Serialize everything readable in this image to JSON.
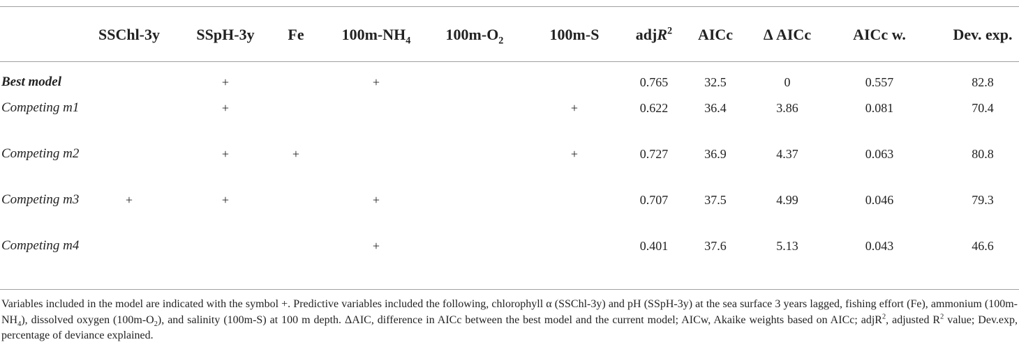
{
  "table": {
    "header": [
      [
        {
          "text": "SSChl-3y"
        }
      ],
      [
        {
          "text": "SSpH-3y"
        }
      ],
      [
        {
          "text": "Fe"
        }
      ],
      [
        {
          "text": "100m-NH"
        },
        {
          "text": "4",
          "style": "sub"
        }
      ],
      [
        {
          "text": "100m-O"
        },
        {
          "text": "2",
          "style": "sub"
        }
      ],
      [
        {
          "text": "100m-S"
        }
      ],
      [
        {
          "text": "adj"
        },
        {
          "text": "R",
          "style": "i"
        },
        {
          "text": "2",
          "style": "sup"
        }
      ],
      [
        {
          "text": "AICc"
        }
      ],
      [
        {
          "text": "Δ AICc"
        }
      ],
      [
        {
          "text": "AICc w."
        }
      ],
      [
        {
          "text": "Dev. exp."
        }
      ]
    ],
    "rows": [
      {
        "label": "Best model",
        "label_style": "bi",
        "cells": [
          null,
          "+",
          null,
          "+",
          null,
          null,
          "0.765",
          "32.5",
          "0",
          "0.557",
          "82.8"
        ]
      },
      {
        "label": "Competing m1",
        "label_style": "i",
        "cells": [
          null,
          "+",
          null,
          null,
          null,
          "+",
          "0.622",
          "36.4",
          "3.86",
          "0.081",
          "70.4"
        ]
      },
      {
        "label": "Competing m2",
        "label_style": "i",
        "cells": [
          null,
          "+",
          "+",
          null,
          null,
          "+",
          "0.727",
          "36.9",
          "4.37",
          "0.063",
          "80.8"
        ]
      },
      {
        "label": "Competing m3",
        "label_style": "i",
        "cells": [
          "+",
          "+",
          null,
          "+",
          null,
          null,
          "0.707",
          "37.5",
          "4.99",
          "0.046",
          "79.3"
        ]
      },
      {
        "label": "Competing m4",
        "label_style": "i",
        "cells": [
          null,
          null,
          null,
          "+",
          null,
          null,
          "0.401",
          "37.6",
          "5.13",
          "0.043",
          "46.6"
        ]
      }
    ],
    "footnote": [
      {
        "text": "Variables included in the model are indicated with the symbol +. Predictive variables included the following, chlorophyll α (SSChl-3y) and pH (SSpH-3y) at the sea surface 3 years lagged, fishing effort (Fe), ammonium (100m-NH"
      },
      {
        "text": "4",
        "style": "sub"
      },
      {
        "text": "), dissolved oxygen (100m-O"
      },
      {
        "text": "2",
        "style": "sub"
      },
      {
        "text": "), and salinity (100m-S) at 100 m depth. ΔAIC, difference in AICc between the best model and the current model; AICw, Akaike weights based on AICc; adjR"
      },
      {
        "text": "2",
        "style": "sup"
      },
      {
        "text": ", adjusted R"
      },
      {
        "text": "2",
        "style": "sup"
      },
      {
        "text": " value; Dev.exp, percentage of deviance explained."
      }
    ]
  }
}
